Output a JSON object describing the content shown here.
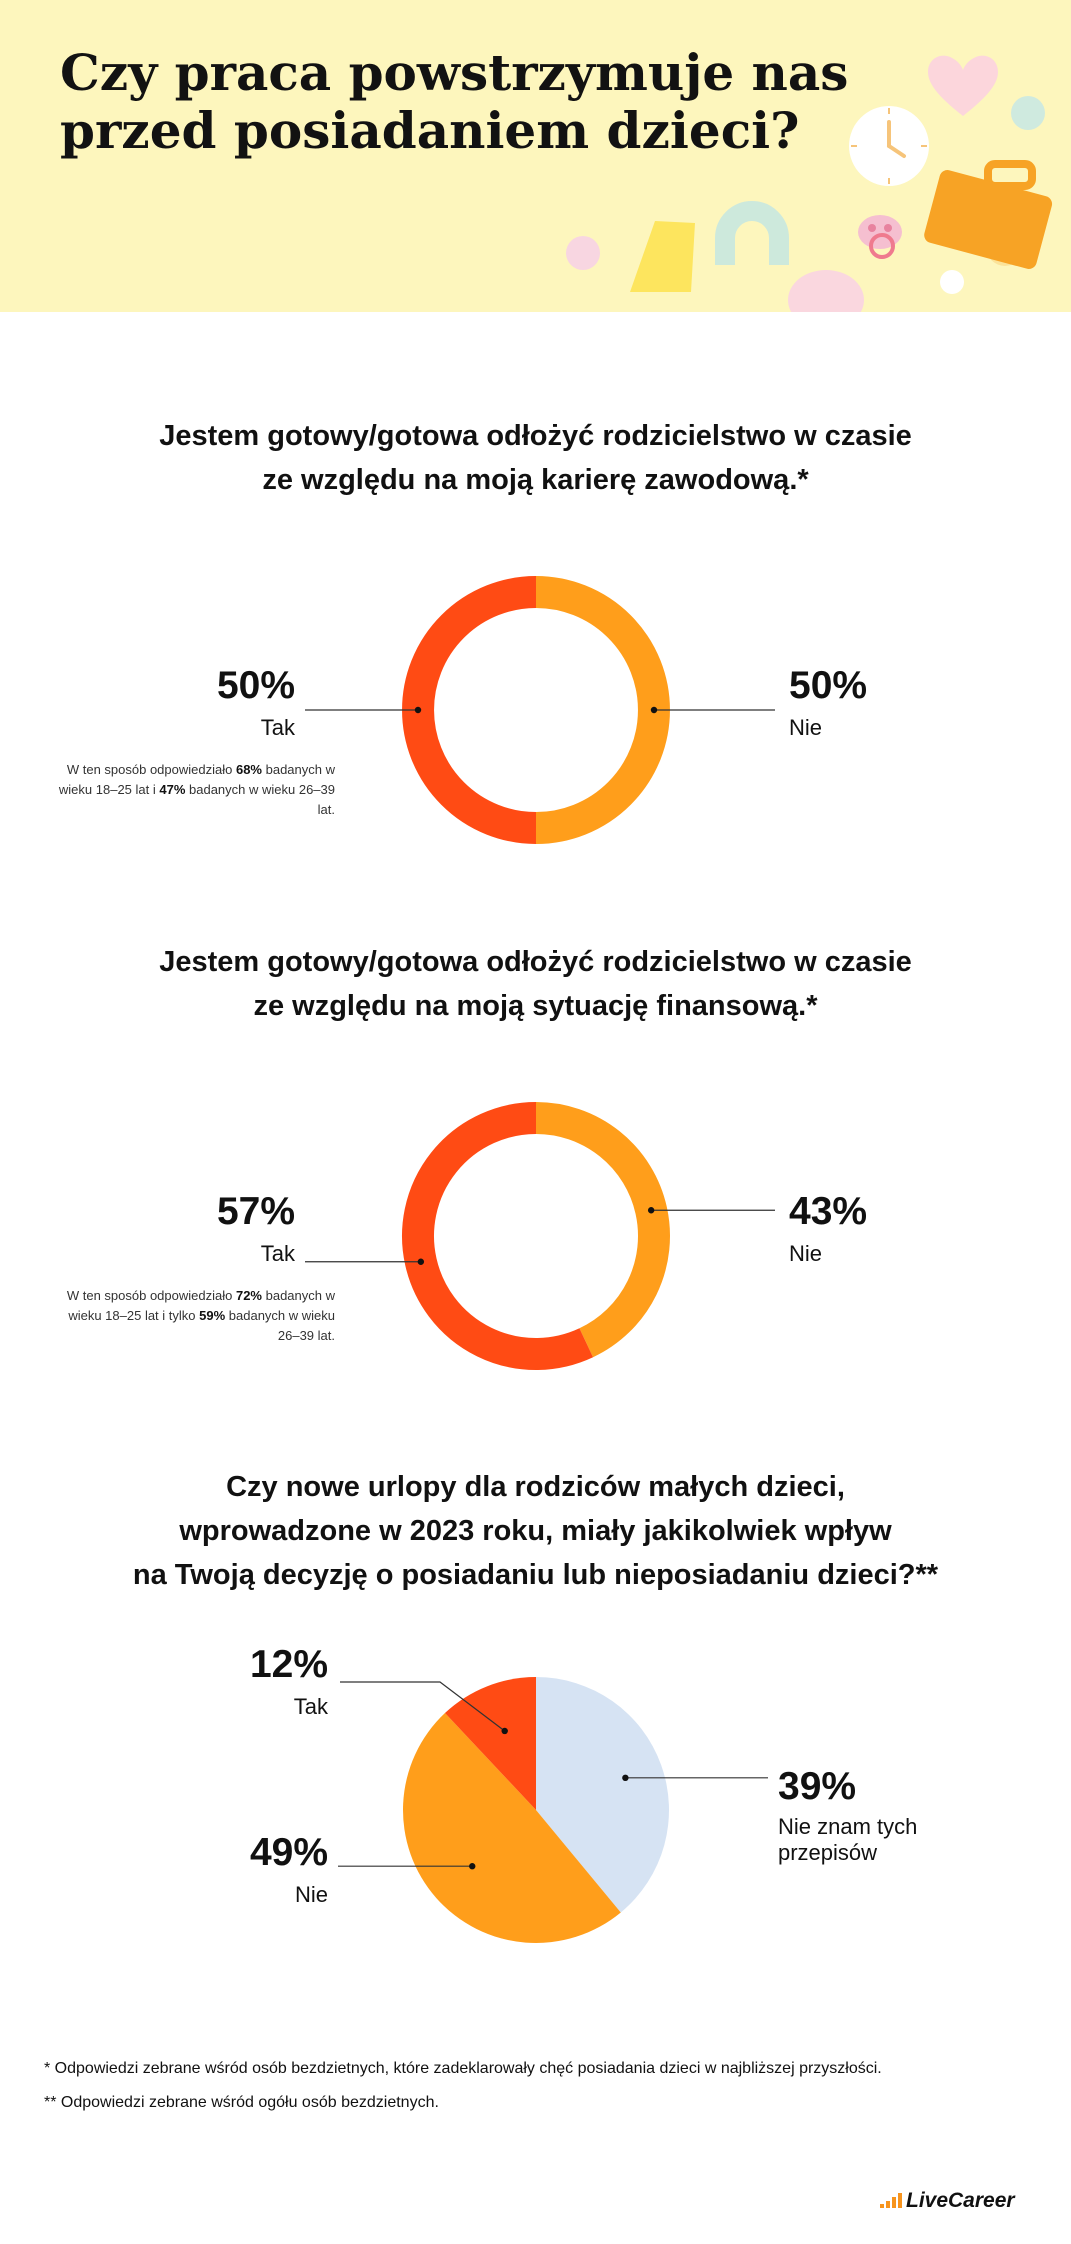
{
  "header": {
    "title_line1": "Czy praca powstrzymuje nas",
    "title_line2": "przed posiadaniem dzieci?"
  },
  "colors": {
    "tak": "#ff4b14",
    "nie": "#ff9e1b",
    "nie_znam": "#d6e3f3",
    "header_bg": "#fdf6bd"
  },
  "chart_data": [
    {
      "type": "pie",
      "title": "Jestem gotowy/gotowa odłożyć rodzicielstwo w czasie ze względu na moją karierę zawodową.*",
      "title_line1": "Jestem gotowy/gotowa odłożyć rodzicielstwo w czasie",
      "title_line2": "ze względu na moją karierę zawodową.*",
      "donut": true,
      "slices": [
        {
          "label": "Tak",
          "value": 50,
          "display": "50%",
          "color": "#ff4b14"
        },
        {
          "label": "Nie",
          "value": 50,
          "display": "50%",
          "color": "#ff9e1b"
        }
      ],
      "note": {
        "pre": "W ten sposób odpowiedziało ",
        "v1": "68%",
        "mid": " badanych w wieku 18–25 lat i ",
        "v2": "47%",
        "post": " badanych w wieku 26–39 lat."
      }
    },
    {
      "type": "pie",
      "title": "Jestem gotowy/gotowa odłożyć rodzicielstwo w czasie ze względu na moją sytuację finansową.*",
      "title_line1": "Jestem gotowy/gotowa odłożyć rodzicielstwo w czasie",
      "title_line2": "ze względu na moją sytuację finansową.*",
      "donut": true,
      "slices": [
        {
          "label": "Tak",
          "value": 57,
          "display": "57%",
          "color": "#ff4b14"
        },
        {
          "label": "Nie",
          "value": 43,
          "display": "43%",
          "color": "#ff9e1b"
        }
      ],
      "note": {
        "pre": "W ten sposób odpowiedziało ",
        "v1": "72%",
        "mid": " badanych w wieku 18–25 lat i tylko ",
        "v2": "59%",
        "post": " badanych w wieku 26–39 lat."
      }
    },
    {
      "type": "pie",
      "title": "Czy nowe urlopy dla rodziców małych dzieci, wprowadzone w 2023 roku, miały jakikolwiek wpływ na Twoją decyzję o posiadaniu lub nieposiadaniu dzieci?**",
      "title_line1": "Czy nowe urlopy dla rodziców małych dzieci,",
      "title_line2": "wprowadzone w 2023 roku, miały jakikolwiek wpływ",
      "title_line3": "na Twoją decyzję o posiadaniu lub nieposiadaniu dzieci?**",
      "donut": false,
      "slices": [
        {
          "label": "Nie znam tych przepisów",
          "label_line1": "Nie znam tych",
          "label_line2": "przepisów",
          "value": 39,
          "display": "39%",
          "color": "#d6e3f3"
        },
        {
          "label": "Nie",
          "value": 49,
          "display": "49%",
          "color": "#ff9e1b"
        },
        {
          "label": "Tak",
          "value": 12,
          "display": "12%",
          "color": "#ff4b14"
        }
      ]
    }
  ],
  "footnotes": {
    "f1": "* Odpowiedzi zebrane wśród osób bezdzietnych, które zadeklarowały chęć posiadania dzieci w najbliższej przyszłości.",
    "f2": "** Odpowiedzi zebrane wśród ogółu osób bezdzietnych."
  },
  "logo": {
    "text": "LiveCareer"
  }
}
